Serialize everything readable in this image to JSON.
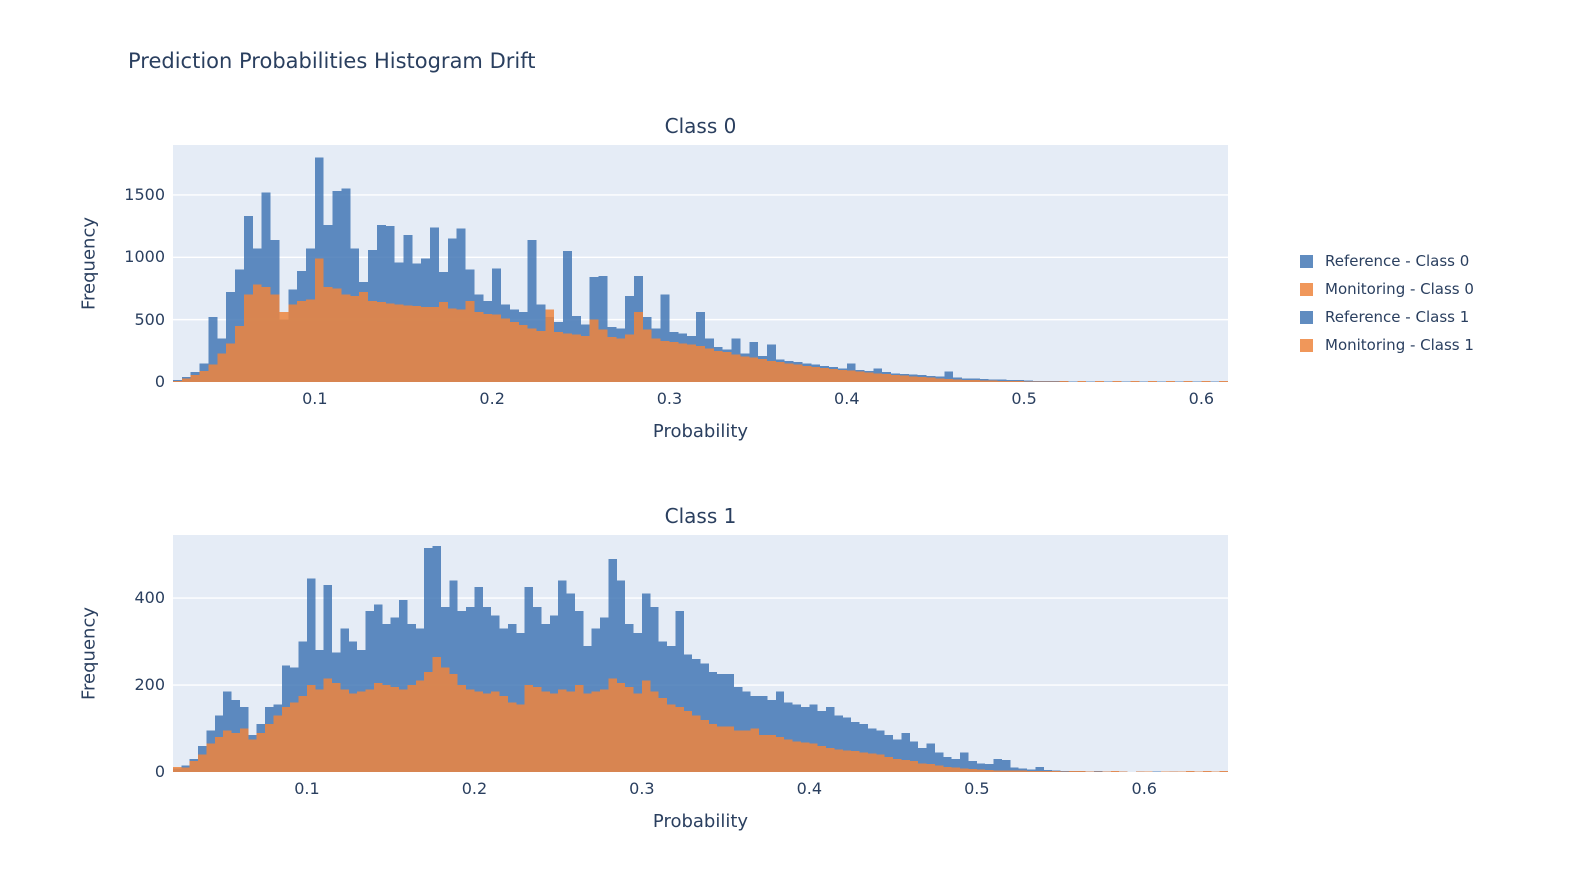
{
  "title": "Prediction Probabilities Histogram Drift",
  "colors": {
    "text": "#2a3f5f",
    "plot_bg": "#e5ecf6",
    "grid": "#ffffff",
    "reference_rgb": "68,120,181",
    "monitoring_rgb": "237,133,61",
    "bar_opacity": 0.85
  },
  "legend": {
    "position": "right",
    "items": [
      {
        "label": "Reference - Class 0",
        "series": "reference"
      },
      {
        "label": "Monitoring - Class 0",
        "series": "monitoring"
      },
      {
        "label": "Reference - Class 1",
        "series": "reference"
      },
      {
        "label": "Monitoring - Class 1",
        "series": "monitoring"
      }
    ]
  },
  "chart_data": [
    {
      "type": "bar",
      "subtype": "overlaid-histogram",
      "title": "Class 0",
      "xlabel": "Probability",
      "ylabel": "Frequency",
      "xlim": [
        0.02,
        0.615
      ],
      "ylim": [
        0,
        1900
      ],
      "grid": "horizontal-white",
      "bin_start": 0.02,
      "bin_width": 0.005,
      "xticks": {
        "values": [
          0.1,
          0.2,
          0.3,
          0.4,
          0.5,
          0.6
        ],
        "labels": [
          "0.1",
          "0.2",
          "0.3",
          "0.4",
          "0.5",
          "0.6"
        ]
      },
      "yticks": {
        "values": [
          0,
          500,
          1000,
          1500
        ],
        "labels": [
          "0",
          "500",
          "1000",
          "1500"
        ]
      },
      "series": [
        {
          "name": "Reference - Class 0",
          "color": "reference",
          "values": [
            15,
            40,
            80,
            150,
            520,
            350,
            720,
            900,
            1330,
            1070,
            1520,
            1140,
            500,
            740,
            890,
            1070,
            1800,
            1260,
            1530,
            1550,
            1070,
            800,
            1060,
            1260,
            1250,
            960,
            1180,
            950,
            990,
            1240,
            880,
            1150,
            1230,
            900,
            700,
            650,
            910,
            620,
            580,
            560,
            1140,
            620,
            520,
            480,
            1050,
            530,
            460,
            840,
            850,
            440,
            430,
            690,
            850,
            520,
            430,
            700,
            400,
            390,
            370,
            560,
            350,
            280,
            260,
            350,
            230,
            320,
            210,
            300,
            180,
            170,
            160,
            150,
            140,
            130,
            120,
            110,
            150,
            95,
            90,
            110,
            80,
            70,
            65,
            60,
            55,
            50,
            45,
            85,
            35,
            30,
            28,
            25,
            22,
            20,
            18,
            15,
            12,
            10,
            10,
            8,
            7,
            6,
            5,
            5,
            4,
            4,
            3,
            3,
            3,
            2,
            2,
            2,
            2,
            1,
            1,
            1,
            1,
            1,
            1
          ]
        },
        {
          "name": "Monitoring - Class 0",
          "color": "monitoring",
          "values": [
            10,
            30,
            55,
            90,
            140,
            230,
            310,
            450,
            700,
            780,
            760,
            700,
            560,
            620,
            650,
            660,
            990,
            760,
            750,
            700,
            690,
            720,
            650,
            640,
            630,
            620,
            615,
            610,
            600,
            600,
            640,
            590,
            580,
            650,
            560,
            545,
            540,
            510,
            480,
            455,
            430,
            410,
            580,
            400,
            390,
            380,
            370,
            500,
            420,
            360,
            350,
            380,
            560,
            420,
            350,
            330,
            320,
            310,
            300,
            290,
            270,
            250,
            240,
            220,
            205,
            195,
            185,
            170,
            160,
            150,
            140,
            130,
            120,
            112,
            105,
            98,
            92,
            85,
            78,
            70,
            64,
            58,
            52,
            46,
            40,
            35,
            30,
            26,
            22,
            18,
            15,
            13,
            11,
            9,
            8,
            7,
            6,
            5,
            5,
            4,
            10,
            0,
            8,
            0,
            9,
            0,
            8,
            0,
            10,
            0,
            8,
            0,
            9,
            0,
            8,
            0,
            9,
            0,
            10
          ]
        }
      ]
    },
    {
      "type": "bar",
      "subtype": "overlaid-histogram",
      "title": "Class 1",
      "xlabel": "Probability",
      "ylabel": "Frequency",
      "xlim": [
        0.02,
        0.65
      ],
      "ylim": [
        0,
        545
      ],
      "grid": "horizontal-white",
      "bin_start": 0.02,
      "bin_width": 0.005,
      "xticks": {
        "values": [
          0.1,
          0.2,
          0.3,
          0.4,
          0.5,
          0.6
        ],
        "labels": [
          "0.1",
          "0.2",
          "0.3",
          "0.4",
          "0.5",
          "0.6"
        ]
      },
      "yticks": {
        "values": [
          0,
          200,
          400
        ],
        "labels": [
          "0",
          "200",
          "400"
        ]
      },
      "series": [
        {
          "name": "Reference - Class 1",
          "color": "reference",
          "values": [
            8,
            15,
            30,
            60,
            95,
            130,
            185,
            165,
            150,
            85,
            110,
            150,
            155,
            245,
            240,
            300,
            445,
            280,
            430,
            275,
            330,
            300,
            280,
            370,
            385,
            340,
            355,
            395,
            340,
            330,
            515,
            520,
            380,
            440,
            370,
            380,
            425,
            380,
            360,
            330,
            340,
            320,
            425,
            380,
            340,
            360,
            440,
            410,
            370,
            290,
            330,
            355,
            490,
            440,
            340,
            320,
            410,
            380,
            300,
            290,
            370,
            270,
            260,
            250,
            230,
            225,
            225,
            195,
            185,
            175,
            175,
            165,
            185,
            160,
            155,
            150,
            155,
            140,
            150,
            130,
            125,
            115,
            110,
            100,
            95,
            85,
            75,
            90,
            70,
            55,
            65,
            45,
            35,
            30,
            45,
            25,
            20,
            18,
            30,
            28,
            10,
            8,
            6,
            12,
            5,
            3,
            2,
            2,
            2,
            1,
            2,
            1,
            1,
            1,
            0,
            1,
            0,
            1,
            0,
            1,
            0,
            1,
            0,
            1,
            0,
            1
          ]
        },
        {
          "name": "Monitoring - Class 1",
          "color": "monitoring",
          "values": [
            12,
            10,
            25,
            40,
            65,
            80,
            95,
            90,
            100,
            75,
            90,
            110,
            130,
            150,
            160,
            175,
            200,
            190,
            215,
            205,
            190,
            180,
            185,
            190,
            205,
            200,
            195,
            190,
            200,
            210,
            230,
            265,
            240,
            225,
            200,
            190,
            185,
            180,
            185,
            175,
            160,
            155,
            200,
            195,
            185,
            180,
            190,
            185,
            200,
            180,
            185,
            190,
            215,
            205,
            195,
            180,
            210,
            185,
            170,
            155,
            150,
            140,
            130,
            120,
            110,
            105,
            105,
            95,
            95,
            100,
            85,
            85,
            80,
            75,
            70,
            68,
            65,
            60,
            55,
            52,
            50,
            48,
            45,
            42,
            40,
            35,
            30,
            28,
            25,
            20,
            18,
            15,
            12,
            10,
            8,
            7,
            6,
            5,
            4,
            4,
            3,
            3,
            2,
            2,
            2,
            2,
            1,
            2,
            2,
            1,
            1,
            1,
            2,
            1,
            0,
            1,
            1,
            0,
            1,
            1,
            1,
            2,
            1,
            2,
            1,
            2
          ]
        }
      ]
    }
  ]
}
